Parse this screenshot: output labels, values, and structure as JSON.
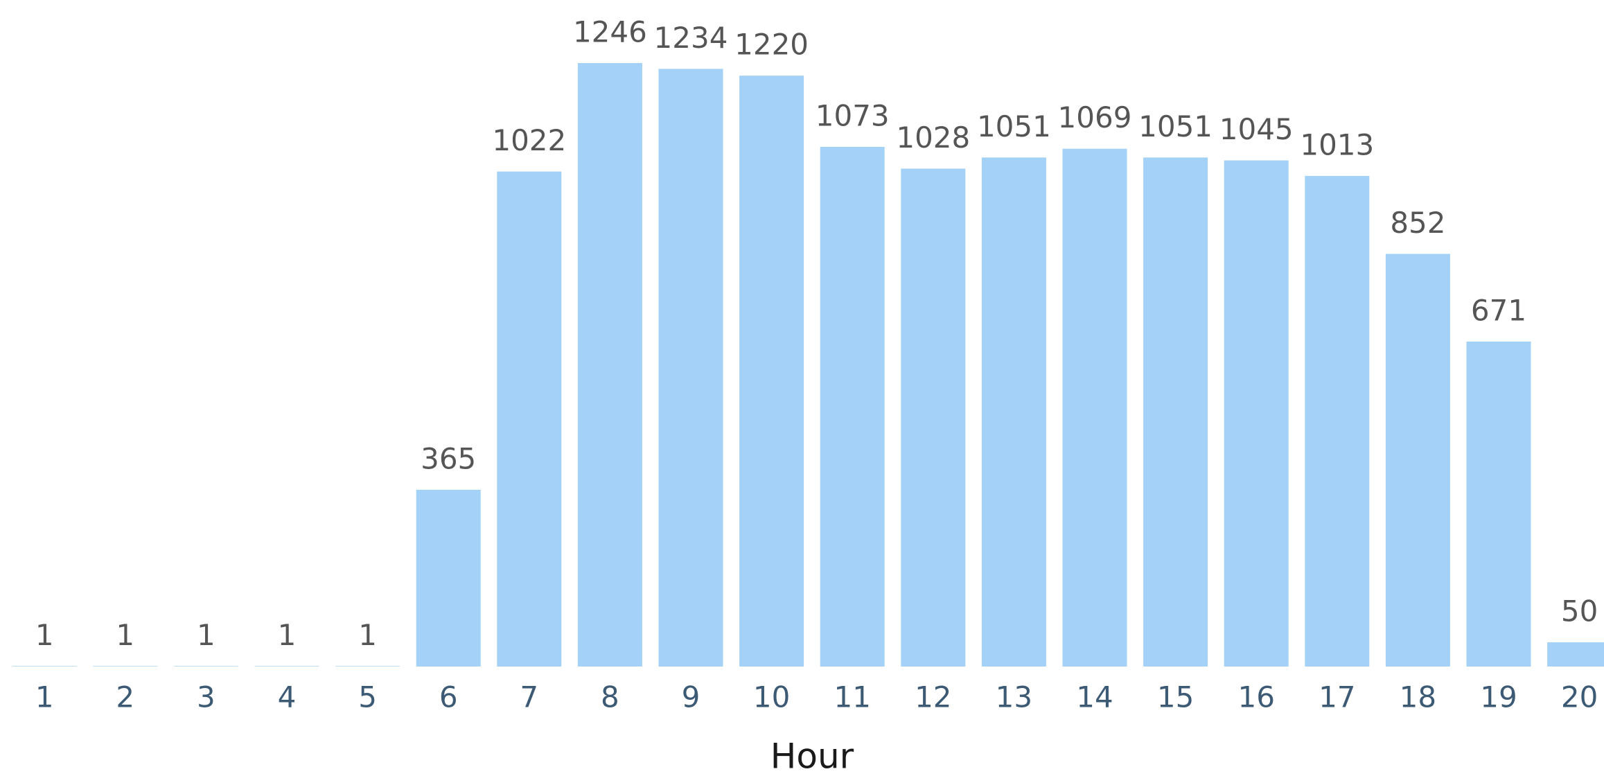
{
  "chart_data": {
    "type": "bar",
    "x_label": "Hour",
    "categories": [
      "1",
      "2",
      "3",
      "4",
      "5",
      "6",
      "7",
      "8",
      "9",
      "10",
      "11",
      "12",
      "13",
      "14",
      "15",
      "16",
      "17",
      "18",
      "19",
      "20"
    ],
    "values": [
      1,
      1,
      1,
      1,
      1,
      365,
      1022,
      1246,
      1234,
      1220,
      1073,
      1028,
      1051,
      1069,
      1051,
      1045,
      1013,
      852,
      671,
      50
    ],
    "color": "#a3d1f7"
  }
}
